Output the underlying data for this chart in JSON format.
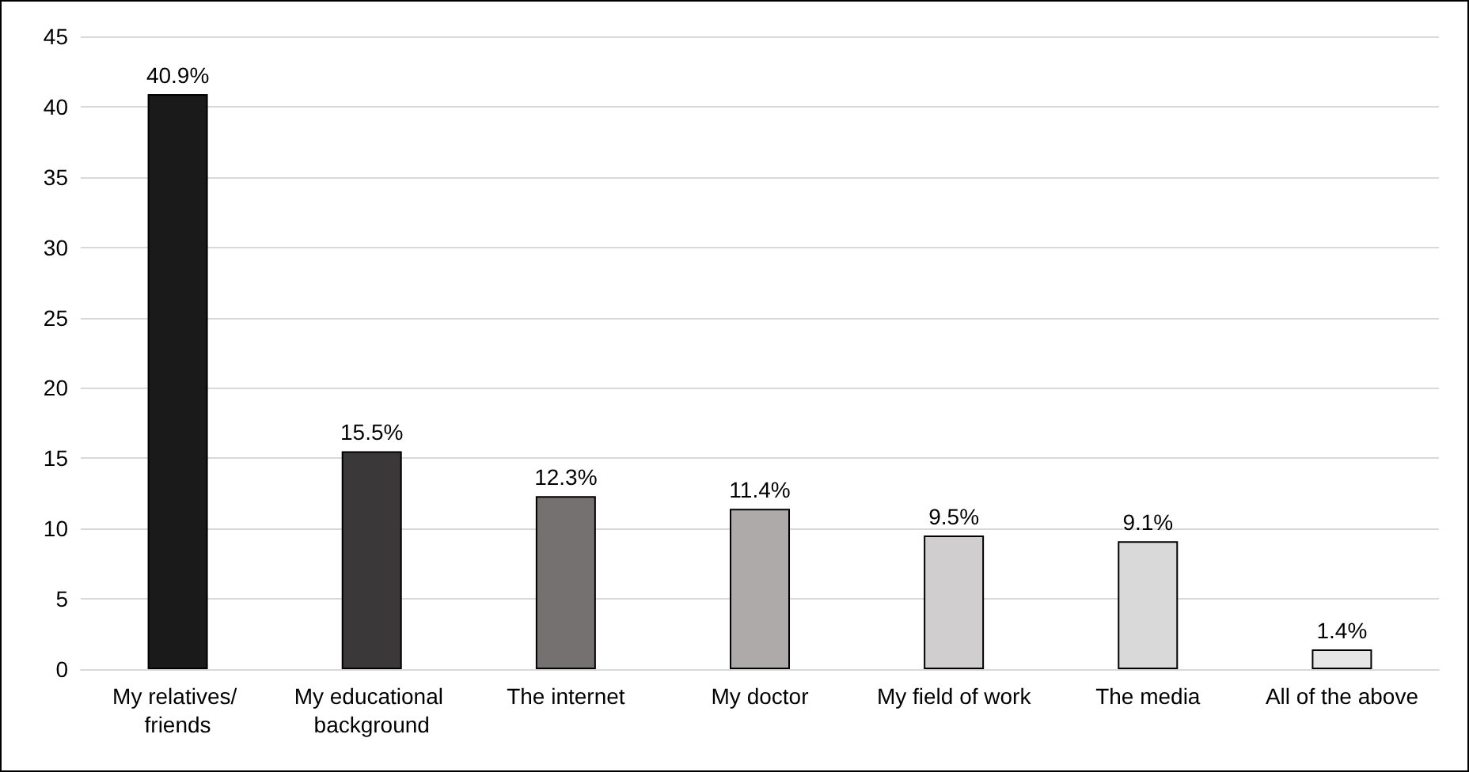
{
  "chart_data": {
    "type": "bar",
    "categories": [
      "My relatives/ friends",
      "My educational background",
      "The internet",
      "My doctor",
      "My field of work",
      "The media",
      "All of the above"
    ],
    "values": [
      40.9,
      15.5,
      12.3,
      11.4,
      9.5,
      9.1,
      1.4
    ],
    "colors": [
      "#1a1a1a",
      "#3b3839",
      "#767171",
      "#aeaaaa",
      "#d0cece",
      "#d9d9d9",
      "#e7e6e6"
    ],
    "value_labels": [
      "40.9%",
      "15.5%",
      "12.3%",
      "11.4%",
      "9.5%",
      "9.1%",
      "1.4%"
    ],
    "ylim": [
      0,
      45
    ],
    "yticks": [
      0,
      5,
      10,
      15,
      20,
      25,
      30,
      35,
      40,
      45
    ],
    "grid": "y"
  }
}
